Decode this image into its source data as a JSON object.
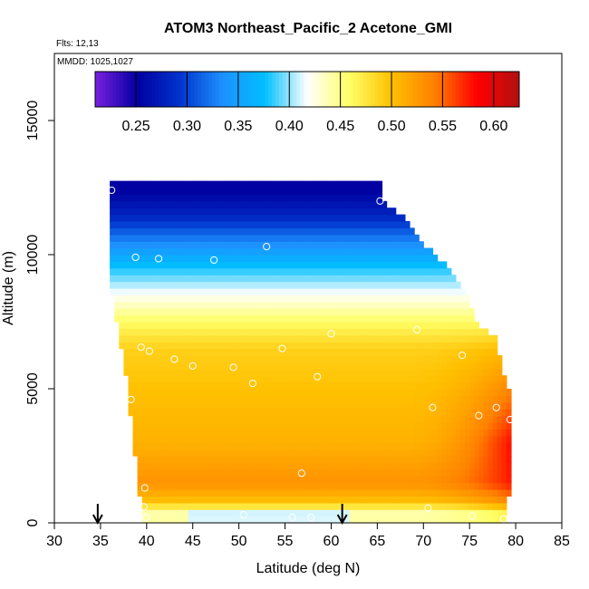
{
  "chart_data": {
    "type": "heatmap",
    "title": "ATOM3 Northeast_Pacific_2 Acetone_GMI",
    "flights_label": "Flts: 12,13",
    "dates_label": "MMDD: 1025,1027",
    "xlabel": "Latitude (deg N)",
    "ylabel": "Altitude (m)",
    "xlim": [
      30,
      85
    ],
    "ylim": [
      0,
      17500
    ],
    "x_ticks": [
      "30",
      "35",
      "40",
      "45",
      "50",
      "55",
      "60",
      "65",
      "70",
      "75",
      "80",
      "85"
    ],
    "y_ticks": [
      "0",
      "5000",
      "10000",
      "15000"
    ],
    "colorbar": {
      "range": [
        0.21,
        0.625
      ],
      "tick_values": [
        0.25,
        0.3,
        0.35,
        0.4,
        0.45,
        0.5,
        0.55,
        0.6
      ],
      "tick_labels": [
        "0.25",
        "0.30",
        "0.35",
        "0.40",
        "0.45",
        "0.50",
        "0.55",
        "0.60"
      ],
      "colors": [
        "#7a1fe0",
        "#0000a0",
        "#0033cc",
        "#1e90ff",
        "#00bfff",
        "#ffffff",
        "#ffff66",
        "#ffc000",
        "#ff8000",
        "#ff0000",
        "#b01010"
      ]
    },
    "field_profile": {
      "altitude_m": [
        0,
        300,
        800,
        1500,
        3000,
        5000,
        6500,
        7500,
        8500,
        9500,
        10500,
        11500,
        12500
      ],
      "acetone": [
        0.45,
        0.43,
        0.5,
        0.53,
        0.51,
        0.5,
        0.49,
        0.46,
        0.42,
        0.38,
        0.33,
        0.28,
        0.25
      ]
    },
    "coverage": {
      "altitude_m": [
        0,
        1000,
        2500,
        4500,
        5500,
        7000,
        7500,
        8500,
        9500,
        10500,
        11500,
        12000,
        12500
      ],
      "lat_min": [
        39.5,
        39.5,
        39.0,
        38.3,
        38.0,
        37.3,
        37.0,
        36.5,
        36.3,
        36.3,
        36.3,
        36.0,
        36.0
      ],
      "lat_max": [
        79.0,
        79.0,
        79.5,
        79.5,
        78.5,
        77.5,
        75.5,
        74.5,
        72.5,
        69.5,
        67.5,
        65.5,
        65.5
      ]
    },
    "sample_points": [
      {
        "lat": 36.2,
        "alt": 12400
      },
      {
        "lat": 65.3,
        "alt": 12000
      },
      {
        "lat": 38.8,
        "alt": 9900
      },
      {
        "lat": 41.3,
        "alt": 9850
      },
      {
        "lat": 47.3,
        "alt": 9800
      },
      {
        "lat": 53.0,
        "alt": 10300
      },
      {
        "lat": 72.2,
        "alt": 10300
      },
      {
        "lat": 60.0,
        "alt": 7050
      },
      {
        "lat": 69.3,
        "alt": 7200
      },
      {
        "lat": 39.4,
        "alt": 6550
      },
      {
        "lat": 40.3,
        "alt": 6400
      },
      {
        "lat": 54.7,
        "alt": 6500
      },
      {
        "lat": 43.0,
        "alt": 6100
      },
      {
        "lat": 45.0,
        "alt": 5850
      },
      {
        "lat": 49.4,
        "alt": 5800
      },
      {
        "lat": 58.5,
        "alt": 5450
      },
      {
        "lat": 51.5,
        "alt": 5200
      },
      {
        "lat": 74.2,
        "alt": 6250
      },
      {
        "lat": 38.3,
        "alt": 4600
      },
      {
        "lat": 71.0,
        "alt": 4300
      },
      {
        "lat": 77.9,
        "alt": 4300
      },
      {
        "lat": 76.0,
        "alt": 4000
      },
      {
        "lat": 79.4,
        "alt": 3850
      },
      {
        "lat": 39.8,
        "alt": 1300
      },
      {
        "lat": 56.8,
        "alt": 1850
      },
      {
        "lat": 39.7,
        "alt": 600
      },
      {
        "lat": 70.5,
        "alt": 550
      },
      {
        "lat": 39.9,
        "alt": 200
      },
      {
        "lat": 50.5,
        "alt": 300
      },
      {
        "lat": 55.8,
        "alt": 200
      },
      {
        "lat": 57.8,
        "alt": 200
      },
      {
        "lat": 75.3,
        "alt": 250
      },
      {
        "lat": 78.7,
        "alt": 150
      }
    ],
    "arrows": [
      {
        "lat": 34.7
      },
      {
        "lat": 61.2
      }
    ],
    "grid": false,
    "colorbar_placement": "top"
  }
}
